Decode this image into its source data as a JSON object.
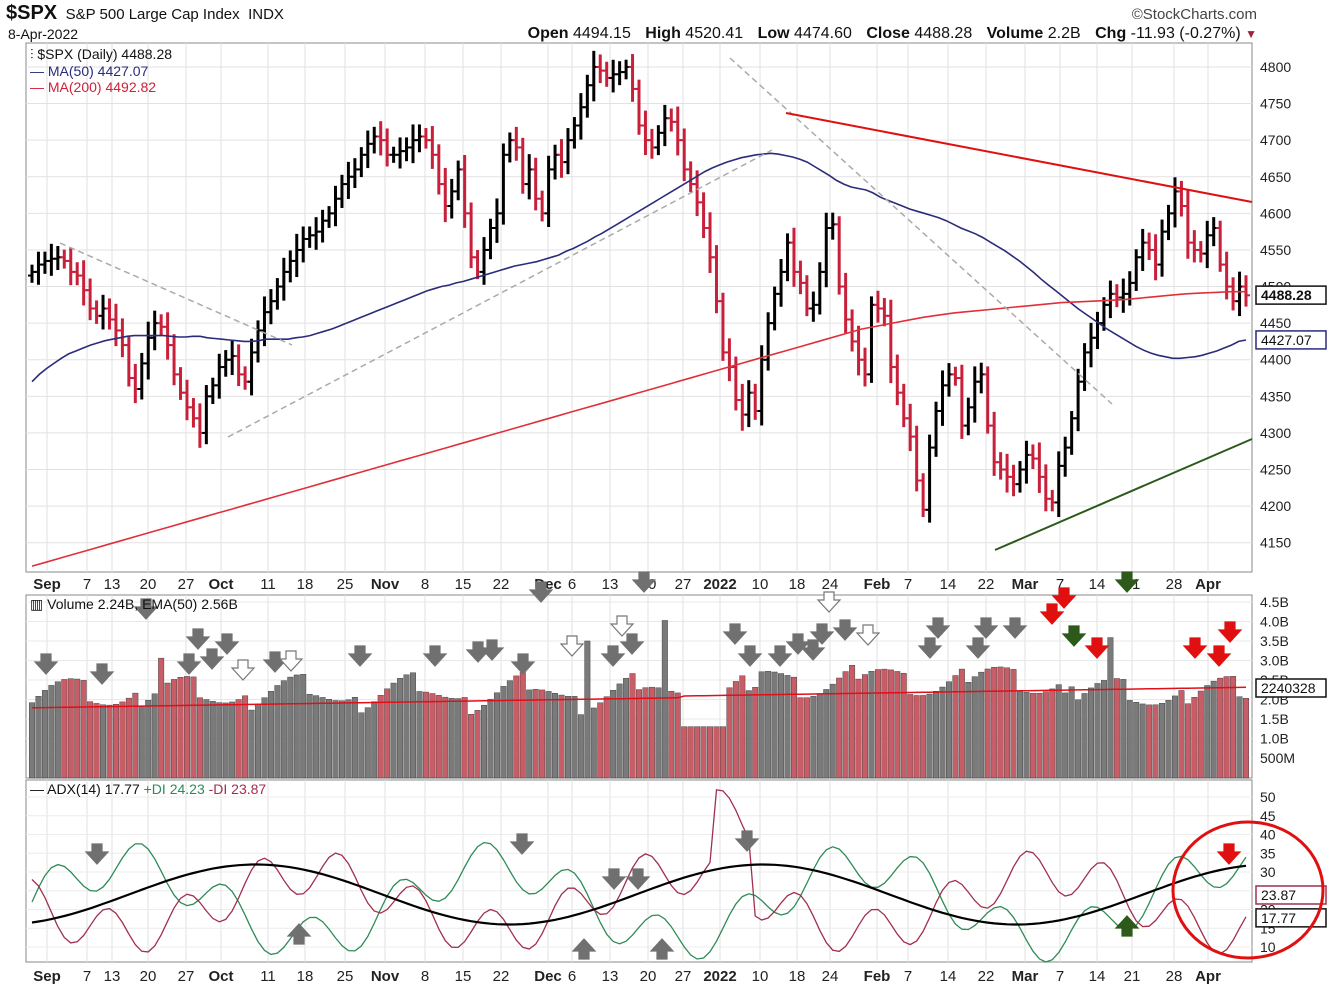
{
  "header": {
    "symbol": "$SPX",
    "name": "S&P 500 Large Cap Index",
    "exchange": "INDX",
    "date": "8-Apr-2022",
    "watermark": "©StockCharts.com",
    "open_label": "Open",
    "open": "4494.15",
    "high_label": "High",
    "high": "4520.41",
    "low_label": "Low",
    "low": "4474.60",
    "close_label": "Close",
    "close": "4488.28",
    "volume_label": "Volume",
    "volume": "2.2B",
    "chg_label": "Chg",
    "chg": "-11.93 (-0.27%)"
  },
  "price_legend": {
    "main": "$SPX (Daily) 4488.28",
    "ma50": "MA(50) 4427.07",
    "ma200": "MA(200) 4492.82"
  },
  "volume_legend": "Volume 2.24B, EMA(50) 2.56B",
  "adx_legend": {
    "adx": "ADX(14) 17.77",
    "pdi": "+DI 24.23",
    "mdi": "-DI 23.87"
  },
  "badges": {
    "close": "4488.28",
    "ma50": "4427.07",
    "vol": "2240328",
    "mdi": "23.87",
    "adx": "17.77"
  },
  "colors": {
    "up": "#000000",
    "down": "#c8203a",
    "ma50": "#2a2c7a",
    "ma200": "#e0303a",
    "vol_up": "#7a7a7a",
    "vol_down": "#c75d66",
    "adx": "#000000",
    "pdi": "#2e8b57",
    "mdi": "#a0304e",
    "arrow_gray": "#707070",
    "arrow_red": "#e01010",
    "arrow_green": "#2d5a1b"
  },
  "chart_data": {
    "type": "ohlc",
    "x_labels": [
      "Sep",
      "7",
      "13",
      "20",
      "27",
      "Oct",
      "11",
      "18",
      "25",
      "Nov",
      "8",
      "15",
      "22",
      "Dec",
      "6",
      "13",
      "20",
      "27",
      "2022",
      "10",
      "18",
      "24",
      "Feb",
      "7",
      "14",
      "22",
      "Mar",
      "7",
      "14",
      "21",
      "28",
      "Apr"
    ],
    "price_axis": {
      "ticks": [
        4150,
        4200,
        4250,
        4300,
        4350,
        4400,
        4450,
        4500,
        4550,
        4600,
        4650,
        4700,
        4750,
        4800
      ],
      "ylim": [
        4110,
        4830
      ]
    },
    "volume_axis": {
      "ticks": [
        "500M",
        "1.0B",
        "1.5B",
        "2.0B",
        "2.5B",
        "3.0B",
        "3.5B",
        "4.0B",
        "4.5B"
      ]
    },
    "adx_axis": {
      "ticks": [
        10,
        15,
        20,
        25,
        30,
        35,
        40,
        45,
        50
      ]
    },
    "close": [
      4520,
      4530,
      4535,
      4538,
      4540,
      4535,
      4520,
      4515,
      4495,
      4470,
      4460,
      4470,
      4455,
      4440,
      4420,
      4375,
      4360,
      4395,
      4430,
      4450,
      4445,
      4420,
      4380,
      4355,
      4335,
      4320,
      4300,
      4350,
      4365,
      4390,
      4400,
      4405,
      4380,
      4370,
      4410,
      4440,
      4465,
      4480,
      4500,
      4520,
      4535,
      4550,
      4565,
      4570,
      4575,
      4590,
      4600,
      4620,
      4640,
      4650,
      4660,
      4680,
      4695,
      4705,
      4700,
      4680,
      4680,
      4685,
      4690,
      4700,
      4705,
      4700,
      4680,
      4640,
      4610,
      4630,
      4660,
      4600,
      4540,
      4520,
      4550,
      4580,
      4600,
      4680,
      4700,
      4690,
      4640,
      4660,
      4620,
      4600,
      4660,
      4680,
      4670,
      4700,
      4720,
      4745,
      4775,
      4800,
      4795,
      4785,
      4790,
      4793,
      4800,
      4770,
      4720,
      4700,
      4690,
      4710,
      4730,
      4725,
      4700,
      4660,
      4640,
      4615,
      4580,
      4540,
      4480,
      4410,
      4390,
      4345,
      4325,
      4355,
      4330,
      4400,
      4450,
      4490,
      4520,
      4560,
      4520,
      4505,
      4470,
      4475,
      4520,
      4580,
      4585,
      4500,
      4455,
      4425,
      4400,
      4380,
      4475,
      4470,
      4460,
      4390,
      4355,
      4320,
      4295,
      4235,
      4195,
      4280,
      4330,
      4365,
      4380,
      4375,
      4310,
      4335,
      4370,
      4380,
      4310,
      4260,
      4250,
      4240,
      4230,
      4250,
      4270,
      4265,
      4240,
      4210,
      4205,
      4255,
      4280,
      4320,
      4370,
      4410,
      4430,
      4450,
      4475,
      4490,
      4485,
      4490,
      4505,
      4540,
      4560,
      4550,
      4530,
      4575,
      4600,
      4630,
      4610,
      4560,
      4550,
      4545,
      4570,
      4580,
      4530,
      4500,
      4480,
      4500,
      4488
    ],
    "ma50": [
      4370,
      4380,
      4388,
      4395,
      4402,
      4408,
      4412,
      4416,
      4420,
      4423,
      4426,
      4428,
      4430,
      4432,
      4433,
      4433,
      4433,
      4433,
      4433,
      4432,
      4431,
      4431,
      4432,
      4432,
      4430,
      4429,
      4428,
      4427,
      4426,
      4425,
      4425,
      4426,
      4428,
      4428,
      4428,
      4428,
      4430,
      4431,
      4433,
      4436,
      4439,
      4442,
      4446,
      4450,
      4454,
      4458,
      4462,
      4466,
      4470,
      4474,
      4478,
      4482,
      4486,
      4490,
      4494,
      4497,
      4500,
      4502,
      4505,
      4507,
      4510,
      4513,
      4516,
      4519,
      4522,
      4525,
      4528,
      4530,
      4532,
      4534,
      4537,
      4540,
      4543,
      4548,
      4552,
      4557,
      4562,
      4568,
      4573,
      4579,
      4585,
      4591,
      4597,
      4603,
      4609,
      4615,
      4621,
      4627,
      4633,
      4639,
      4645,
      4651,
      4657,
      4662,
      4666,
      4670,
      4673,
      4676,
      4678,
      4680,
      4681,
      4682,
      4681,
      4679,
      4677,
      4674,
      4670,
      4664,
      4658,
      4652,
      4645,
      4640,
      4636,
      4634,
      4632,
      4628,
      4622,
      4618,
      4614,
      4610,
      4606,
      4603,
      4600,
      4597,
      4594,
      4590,
      4585,
      4580,
      4576,
      4572,
      4567,
      4561,
      4555,
      4549,
      4542,
      4535,
      4527,
      4519,
      4510,
      4502,
      4494,
      4486,
      4478,
      4470,
      4463,
      4456,
      4449,
      4442,
      4436,
      4430,
      4424,
      4418,
      4413,
      4409,
      4406,
      4404,
      4402,
      4402,
      4403,
      4404,
      4406,
      4409,
      4412,
      4416,
      4420,
      4425,
      4427
    ],
    "ma200": [
      4118,
      4124,
      4130,
      4136,
      4142,
      4148,
      4154,
      4160,
      4166,
      4172,
      4178,
      4184,
      4190,
      4196,
      4202,
      4208,
      4214,
      4220,
      4226,
      4232,
      4238,
      4244,
      4250,
      4256,
      4262,
      4268,
      4274,
      4280,
      4286,
      4292,
      4298,
      4304,
      4310,
      4316,
      4322,
      4328,
      4334,
      4340,
      4346,
      4352,
      4358,
      4364,
      4370,
      4376,
      4382,
      4388,
      4394,
      4400,
      4406,
      4412,
      4418,
      4424,
      4430,
      4436,
      4442,
      4446,
      4450,
      4454,
      4458,
      4461,
      4464,
      4466,
      4468,
      4470,
      4472,
      4474,
      4476,
      4478,
      4479,
      4480,
      4481,
      4482,
      4484,
      4486,
      4488,
      4490,
      4491,
      4492,
      4493,
      4493
    ],
    "volume_ticks_ylim": [
      0,
      4.7
    ]
  }
}
